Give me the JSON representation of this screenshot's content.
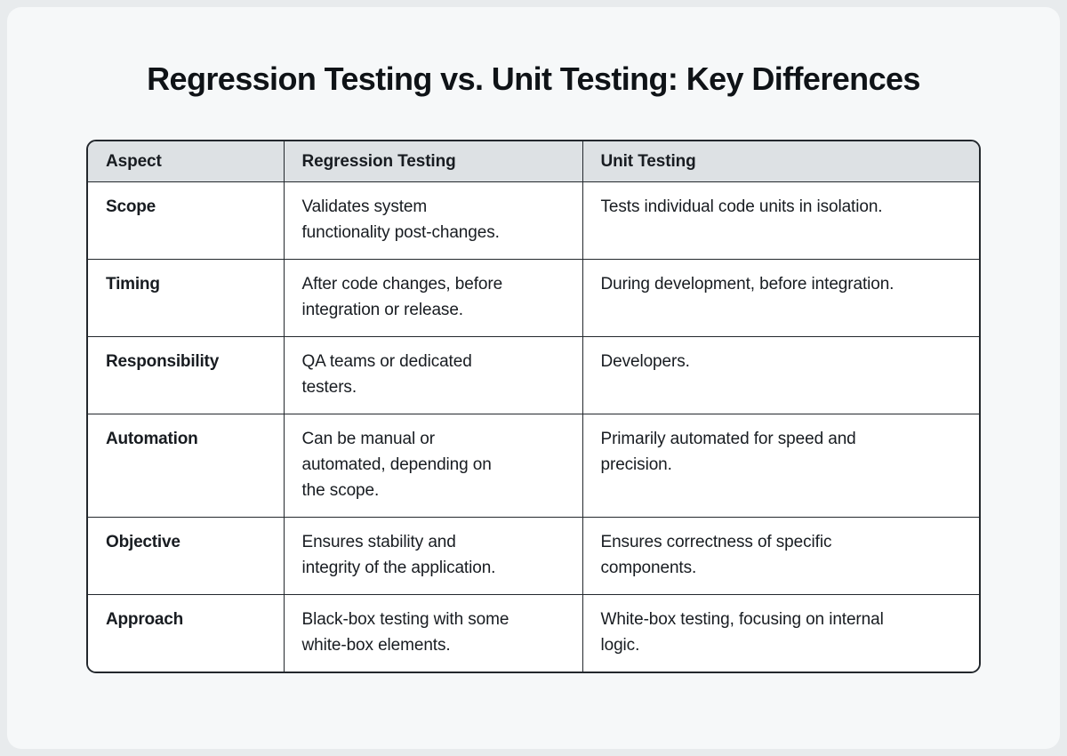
{
  "page": {
    "title": "Regression Testing vs. Unit Testing: Key Differences"
  },
  "table": {
    "columns": [
      "Aspect",
      "Regression Testing",
      "Unit Testing"
    ],
    "rows": [
      {
        "aspect": "Scope",
        "regression": "Validates system\nfunctionality post-changes.",
        "unit": "Tests individual code units in isolation."
      },
      {
        "aspect": "Timing",
        "regression": "After code changes, before\nintegration or release.",
        "unit": "During development, before integration."
      },
      {
        "aspect": "Responsibility",
        "regression": "QA teams or dedicated\ntesters.",
        "unit": "Developers."
      },
      {
        "aspect": "Automation",
        "regression": "Can be manual or\nautomated, depending on\nthe scope.",
        "unit": "Primarily automated for speed and\nprecision."
      },
      {
        "aspect": "Objective",
        "regression": "Ensures stability and\nintegrity of the application.",
        "unit": "Ensures correctness of specific\ncomponents."
      },
      {
        "aspect": "Approach",
        "regression": "Black-box testing with some\nwhite-box elements.",
        "unit": "White-box testing, focusing on internal\nlogic."
      }
    ]
  },
  "colors": {
    "page_bg": "#e8ebed",
    "card_bg": "#f6f8f9",
    "header_bg": "#dde1e4",
    "border": "#23282d",
    "cell_bg": "#ffffff",
    "text": "#181c21",
    "title": "#0f1317"
  }
}
